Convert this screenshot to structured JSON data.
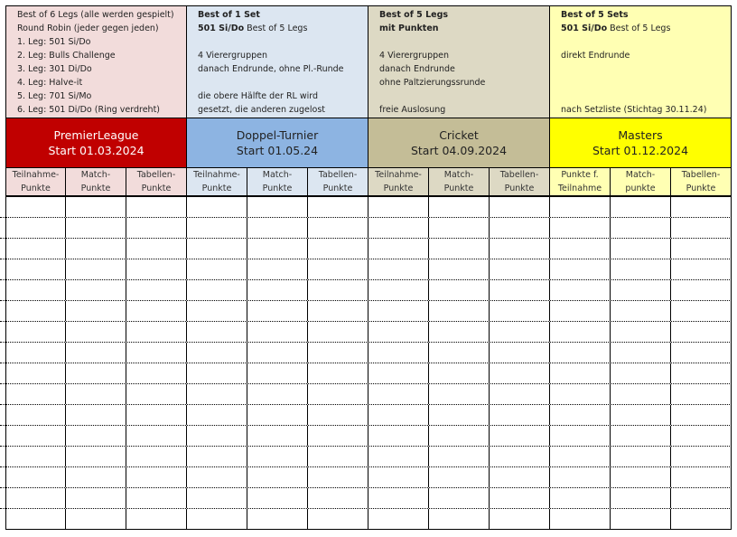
{
  "columns": [
    {
      "name": "premier-league",
      "desc_bg": "#f2dcdb",
      "title_bg": "#c00000",
      "title_color": "#ffffff",
      "sub_bg": "#f2dcdb",
      "desc_lines": [
        {
          "bold": "",
          "text": "Best of 6 Legs (alle werden gespielt)"
        },
        {
          "bold": "",
          "text": "Round Robin (jeder gegen jeden)"
        },
        {
          "bold": "",
          "text": "1. Leg: 501 Si/Do"
        },
        {
          "bold": "",
          "text": "2. Leg: Bulls Challenge"
        },
        {
          "bold": "",
          "text": "3. Leg: 301 Di/Do"
        },
        {
          "bold": "",
          "text": "4. Leg: Halve-it"
        },
        {
          "bold": "",
          "text": "5. Leg: 701 Si/Mo"
        },
        {
          "bold": "",
          "text": "6. Leg: 501 Di/Do (Ring verdreht)"
        }
      ],
      "title": "PremierLeague",
      "start": "Start 01.03.2024",
      "subs": [
        [
          "Teilnahme-",
          "Punkte"
        ],
        [
          "Match-",
          "Punkte"
        ],
        [
          "Tabellen-",
          "Punkte"
        ]
      ]
    },
    {
      "name": "doppel-turnier",
      "desc_bg": "#dce6f1",
      "title_bg": "#8db4e2",
      "title_color": "#222222",
      "sub_bg": "#dce6f1",
      "desc_lines": [
        {
          "bold": "Best of 1 Set",
          "text": ""
        },
        {
          "bold": "501 Si/Do",
          "text": " Best of 5 Legs"
        },
        {
          "bold": "",
          "text": ""
        },
        {
          "bold": "",
          "text": "4 Vierergruppen"
        },
        {
          "bold": "",
          "text": "danach Endrunde, ohne Pl.-Runde"
        },
        {
          "bold": "",
          "text": ""
        },
        {
          "bold": "",
          "text": "die obere Hälfte der RL wird"
        },
        {
          "bold": "",
          "text": "gesetzt, die anderen zugelost"
        }
      ],
      "title": "Doppel-Turnier",
      "start": "Start 01.05.24",
      "subs": [
        [
          "Teilnahme-",
          "Punkte"
        ],
        [
          "Match-",
          "Punkte"
        ],
        [
          "Tabellen-",
          "Punkte"
        ]
      ]
    },
    {
      "name": "cricket",
      "desc_bg": "#ddd9c4",
      "title_bg": "#c4bd97",
      "title_color": "#222222",
      "sub_bg": "#ddd9c4",
      "desc_lines": [
        {
          "bold": "Best of 5 Legs",
          "text": ""
        },
        {
          "bold": "mit Punkten",
          "text": ""
        },
        {
          "bold": "",
          "text": ""
        },
        {
          "bold": "",
          "text": "4 Vierergruppen"
        },
        {
          "bold": "",
          "text": "danach Endrunde"
        },
        {
          "bold": "",
          "text": "ohne Paltzierungssrunde"
        },
        {
          "bold": "",
          "text": ""
        },
        {
          "bold": "",
          "text": "freie Auslosung"
        }
      ],
      "title": "Cricket",
      "start": "Start 04.09.2024",
      "subs": [
        [
          "Teilnahme-",
          "Punkte"
        ],
        [
          "Match-",
          "Punkte"
        ],
        [
          "Tabellen-",
          "Punkte"
        ]
      ]
    },
    {
      "name": "masters",
      "desc_bg": "#ffffb3",
      "title_bg": "#ffff00",
      "title_color": "#222222",
      "sub_bg": "#ffffb3",
      "desc_lines": [
        {
          "bold": "Best of 5 Sets",
          "text": ""
        },
        {
          "bold": "501 Si/Do",
          "text": " Best of 5 Legs"
        },
        {
          "bold": "",
          "text": ""
        },
        {
          "bold": "",
          "text": "direkt Endrunde"
        },
        {
          "bold": "",
          "text": ""
        },
        {
          "bold": "",
          "text": ""
        },
        {
          "bold": "",
          "text": ""
        },
        {
          "bold": "",
          "text": "nach Setzliste (Stichtag 30.11.24)"
        }
      ],
      "title": "Masters",
      "start": "Start 01.12.2024",
      "subs": [
        [
          "Punkte f.",
          "Teilnahme"
        ],
        [
          "Match-",
          "punkte"
        ],
        [
          "Tabellen-",
          "Punkte"
        ]
      ]
    }
  ],
  "body_rows": 16
}
